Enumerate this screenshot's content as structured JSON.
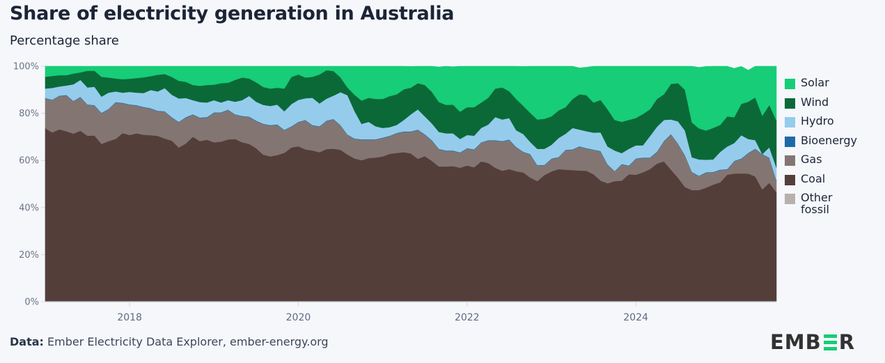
{
  "header": {
    "title": "Share of electricity generation in Australia",
    "subtitle": "Percentage share"
  },
  "footer": {
    "source_label": "Data:",
    "source_text": "Ember Electricity Data Explorer, ember-energy.org"
  },
  "logo": {
    "text_left": "EMB",
    "text_right": "R",
    "accent": "#17cd77"
  },
  "chart_data": {
    "type": "area",
    "stacked": true,
    "title": "Share of electricity generation in Australia",
    "subtitle": "Percentage share",
    "xlabel": "",
    "ylabel": "",
    "ylim": [
      0,
      100
    ],
    "yticks": [
      0,
      20,
      40,
      60,
      80,
      100
    ],
    "ytick_labels": [
      "0%",
      "20%",
      "40%",
      "60%",
      "80%",
      "100%"
    ],
    "x_start": "2017-01",
    "x_end": "2025-09",
    "x_frequency": "monthly",
    "xticks": [
      "2018",
      "2020",
      "2022",
      "2024"
    ],
    "grid": false,
    "legend_position": "right",
    "legend": [
      "Solar",
      "Wind",
      "Hydro",
      "Bioenergy",
      "Gas",
      "Coal",
      "Other fossil"
    ],
    "colors": {
      "Solar": "#17cd77",
      "Wind": "#0b6938",
      "Hydro": "#95ccec",
      "Bioenergy": "#1e6aa8",
      "Gas": "#837672",
      "Coal": "#533e3a",
      "Other fossil": "#b7b0ad"
    },
    "stack_order_bottom_to_top": [
      "Other fossil",
      "Coal",
      "Gas",
      "Bioenergy",
      "Hydro",
      "Wind",
      "Solar"
    ],
    "cumulative_tops_note": "values below are shares (%) per month, Jan 2017 to Sep 2025",
    "series": [
      {
        "name": "Other fossil",
        "values": [
          0.3,
          0.3,
          0.3,
          0.3,
          0.3,
          0.3,
          0.3,
          0.3,
          0.3,
          0.3,
          0.3,
          0.3,
          0.3,
          0.3,
          0.3,
          0.3,
          0.3,
          0.3,
          0.3,
          0.3,
          0.3,
          0.3,
          0.3,
          0.3,
          0.3,
          0.3,
          0.3,
          0.3,
          0.3,
          0.3,
          0.3,
          0.3,
          0.3,
          0.3,
          0.3,
          0.3,
          0.3,
          0.3,
          0.3,
          0.3,
          0.3,
          0.3,
          0.3,
          0.3,
          0.3,
          0.3,
          0.3,
          0.3,
          0.3,
          0.3,
          0.3,
          0.3,
          0.3,
          0.3,
          0.3,
          0.3,
          0.3,
          0.3,
          0.3,
          0.3,
          0.3,
          0.3,
          0.3,
          0.3,
          0.3,
          0.3,
          0.3,
          0.3,
          0.3,
          0.3,
          0.3,
          0.3,
          0.3,
          0.3,
          0.3,
          0.3,
          0.3,
          0.3,
          0.3,
          0.3,
          0.3,
          0.3,
          0.3,
          0.3,
          0.3,
          0.3,
          0.3,
          0.3,
          0.3,
          0.3,
          0.3,
          0.3,
          0.3,
          0.3,
          0.3,
          0.3,
          0.3,
          0.3,
          0.3,
          0.3,
          0.3,
          0.3,
          0.3,
          0.3,
          0.3
        ]
      },
      {
        "name": "Coal",
        "values": [
          73.4,
          71.6,
          72.9,
          72.1,
          71.1,
          72.3,
          70.2,
          70.3,
          66.7,
          67.9,
          68.8,
          71.3,
          70.5,
          71.2,
          70.6,
          70.4,
          70.1,
          69.0,
          68.1,
          65.2,
          66.9,
          69.8,
          67.9,
          68.5,
          67.4,
          67.7,
          68.6,
          68.8,
          67.4,
          66.7,
          64.9,
          62.2,
          61.4,
          62.0,
          62.9,
          65.2,
          65.7,
          64.4,
          63.9,
          63.2,
          64.5,
          64.7,
          64.2,
          62.2,
          60.5,
          59.8,
          60.7,
          60.9,
          61.4,
          62.5,
          62.9,
          63.2,
          62.7,
          60.4,
          61.5,
          59.5,
          57.1,
          57.1,
          57.3,
          56.6,
          57.5,
          56.8,
          59.3,
          58.6,
          56.6,
          55.3,
          56.0,
          55.1,
          54.6,
          52.4,
          50.9,
          53.5,
          55.0,
          56.0,
          55.8,
          55.6,
          55.4,
          55.3,
          53.8,
          51.1,
          50.0,
          50.9,
          51.1,
          53.8,
          53.6,
          54.6,
          56.0,
          58.3,
          59.3,
          55.8,
          52.4,
          48.4,
          47.1,
          47.1,
          48.1,
          49.4,
          50.4,
          53.6,
          54.1,
          54.2,
          54.1,
          52.9,
          47.4,
          50.2,
          46.2
        ]
      },
      {
        "name": "Gas",
        "values": [
          12.6,
          13.7,
          14.1,
          15.2,
          13.7,
          14.2,
          13.1,
          12.7,
          13.0,
          13.5,
          15.5,
          12.7,
          12.8,
          11.8,
          11.6,
          11.3,
          10.5,
          11.4,
          9.8,
          10.7,
          11.0,
          9.3,
          9.8,
          9.4,
          12.5,
          12.2,
          12.5,
          10.3,
          11.0,
          11.4,
          11.5,
          12.9,
          13.1,
          12.8,
          9.6,
          8.8,
          10.2,
          12.3,
          10.6,
          10.8,
          11.9,
          12.4,
          10.3,
          8.3,
          8.3,
          8.7,
          7.8,
          7.6,
          7.8,
          7.5,
          8.3,
          8.6,
          9.1,
          12.2,
          9.1,
          8.6,
          7.3,
          6.6,
          6.4,
          6.3,
          7.2,
          7.4,
          7.9,
          9.5,
          11.5,
          12.4,
          12.4,
          10.1,
          8.6,
          9.8,
          6.6,
          4.1,
          5.3,
          4.9,
          8.2,
          8.6,
          10.1,
          9.4,
          10.3,
          12.4,
          7.8,
          4.1,
          6.9,
          3.5,
          6.7,
          6.1,
          4.7,
          4.9,
          8.5,
          14.9,
          14.3,
          13.3,
          7.5,
          5.9,
          6.4,
          5.2,
          5.2,
          2.2,
          5.2,
          6.1,
          8.6,
          11.6,
          14.8,
          10.5,
          5.0
        ]
      },
      {
        "name": "Bioenergy",
        "values": [
          0.2,
          0.2,
          0.2,
          0.2,
          0.2,
          0.2,
          0.2,
          0.2,
          0.2,
          0.2,
          0.2,
          0.2,
          0.2,
          0.2,
          0.2,
          0.2,
          0.2,
          0.2,
          0.2,
          0.2,
          0.2,
          0.2,
          0.2,
          0.2,
          0.2,
          0.2,
          0.2,
          0.2,
          0.2,
          0.2,
          0.2,
          0.2,
          0.2,
          0.2,
          0.2,
          0.2,
          0.2,
          0.2,
          0.2,
          0.2,
          0.2,
          0.2,
          0.2,
          0.2,
          0.2,
          0.2,
          0.2,
          0.2,
          0.2,
          0.2,
          0.2,
          0.2,
          0.2,
          0.2,
          0.2,
          0.2,
          0.2,
          0.2,
          0.2,
          0.2,
          0.2,
          0.2,
          0.2,
          0.2,
          0.2,
          0.2,
          0.2,
          0.2,
          0.2,
          0.2,
          0.2,
          0.2,
          0.2,
          0.2,
          0.2,
          0.2,
          0.2,
          0.2,
          0.2,
          0.2,
          0.2,
          0.2,
          0.2,
          0.2,
          0.2,
          0.2,
          0.2,
          0.2,
          0.2,
          0.2,
          0.2,
          0.2,
          0.2,
          0.2,
          0.2,
          0.2,
          0.2,
          0.2,
          0.2,
          0.2,
          0.2,
          0.2,
          0.2,
          0.2,
          0.2
        ]
      },
      {
        "name": "Hydro",
        "values": [
          4.0,
          5.0,
          3.9,
          4.0,
          7.0,
          7.2,
          7.2,
          7.8,
          6.9,
          6.9,
          4.5,
          4.3,
          5.3,
          5.3,
          5.9,
          7.7,
          8.2,
          9.8,
          9.5,
          9.9,
          8.1,
          6.0,
          6.6,
          6.2,
          5.2,
          4.2,
          4.0,
          5.3,
          6.7,
          8.8,
          8.0,
          8.0,
          8.1,
          8.4,
          7.9,
          9.4,
          9.3,
          9.2,
          11.6,
          9.7,
          9.3,
          9.9,
          14.0,
          16.7,
          11.7,
          6.5,
          7.4,
          5.5,
          4.1,
          3.6,
          3.4,
          4.9,
          7.3,
          8.6,
          7.6,
          7.1,
          7.2,
          7.3,
          7.3,
          5.7,
          5.6,
          5.8,
          6.1,
          6.6,
          9.8,
          9.2,
          9.1,
          7.1,
          7.5,
          5.1,
          6.9,
          6.8,
          5.8,
          8.1,
          6.8,
          9.1,
          7.1,
          7.2,
          7.2,
          7.9,
          7.6,
          8.7,
          4.6,
          7.1,
          5.6,
          5.2,
          9.1,
          10.6,
          8.9,
          6.2,
          9.4,
          10.5,
          6.2,
          6.9,
          5.3,
          5.3,
          7.5,
          9.6,
          7.6,
          9.9,
          5.9,
          3.6,
          -0.4,
          4.4,
          5.3
        ]
      },
      {
        "name": "Wind",
        "values": [
          5.0,
          5.1,
          4.8,
          4.4,
          4.6,
          3.2,
          7.1,
          6.8,
          8.4,
          6.4,
          5.5,
          5.7,
          5.6,
          6.2,
          6.7,
          5.9,
          7.1,
          6.0,
          7.6,
          7.5,
          6.9,
          6.4,
          6.9,
          7.4,
          6.6,
          8.2,
          7.4,
          9.3,
          9.6,
          7.4,
          8.3,
          7.6,
          7.4,
          7.2,
          9.6,
          11.5,
          10.8,
          8.8,
          8.9,
          12.3,
          12.1,
          10.5,
          6.3,
          3.3,
          6.9,
          9.9,
          10.2,
          11.6,
          12.3,
          13.2,
          13.0,
          13.0,
          11.3,
          11.1,
          13.3,
          13.4,
          12.7,
          12.1,
          12.2,
          11.6,
          11.8,
          12.1,
          10.8,
          11.4,
          12.1,
          13.6,
          11.4,
          13.3,
          12.0,
          12.4,
          12.5,
          12.8,
          12.1,
          11.7,
          11.3,
          12.3,
          15.0,
          15.3,
          12.8,
          13.8,
          15.8,
          13.0,
          13.3,
          12.3,
          11.6,
          13.3,
          11.4,
          11.8,
          10.9,
          15.1,
          16.2,
          17.3,
          14.8,
          13.2,
          12.4,
          13.4,
          11.5,
          12.8,
          10.9,
          13.3,
          15.8,
          18.2,
          16.3,
          18.0,
          20.0
        ]
      },
      {
        "name": "Solar",
        "values": [
          4.5,
          4.1,
          3.8,
          3.8,
          3.1,
          2.6,
          1.9,
          1.9,
          4.5,
          4.8,
          5.2,
          5.5,
          5.3,
          5.0,
          4.7,
          4.2,
          3.6,
          3.3,
          4.5,
          6.2,
          6.8,
          8.0,
          8.3,
          8.0,
          7.8,
          7.2,
          7.0,
          5.8,
          4.8,
          5.2,
          6.8,
          8.8,
          10.3,
          11.4,
          11.7,
          10.1,
          9.5,
          9.5,
          8.5,
          7.0,
          6.5,
          7.0,
          8.8,
          11.4,
          12.9,
          14.7,
          14.4,
          14.4,
          13.9,
          12.7,
          11.9,
          9.8,
          9.0,
          7.2,
          8.0,
          10.9,
          14.9,
          16.4,
          16.1,
          19.3,
          17.4,
          17.4,
          15.4,
          13.4,
          9.5,
          9.0,
          10.9,
          13.9,
          16.7,
          19.8,
          22.6,
          22.3,
          21.3,
          18.8,
          17.4,
          13.9,
          11.2,
          11.9,
          15.4,
          20.3,
          22.8,
          22.8,
          23.8,
          22.8,
          22.0,
          20.3,
          18.3,
          13.9,
          11.9,
          13.1,
          16.9,
          21.3,
          25.2,
          25.9,
          27.2,
          26.2,
          24.9,
          21.3,
          20.8,
          15.9,
          13.4,
          14.4,
          21.3,
          20.0,
          23.0
        ]
      }
    ]
  }
}
